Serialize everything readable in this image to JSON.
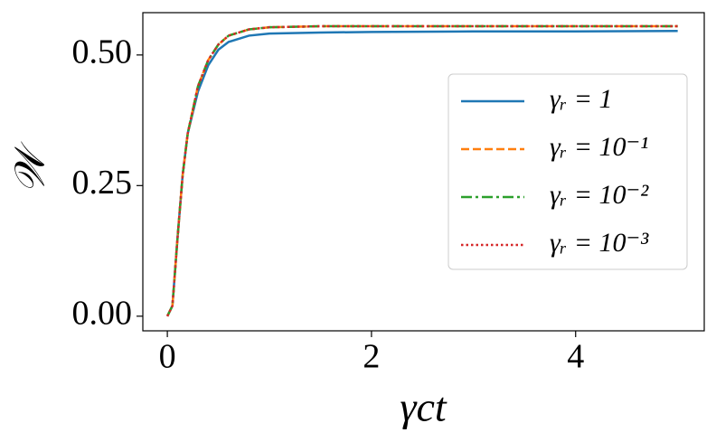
{
  "chart_data": {
    "type": "line",
    "xlabel": "γct",
    "ylabel": "𝒲",
    "x": [
      0,
      0.05,
      0.1,
      0.15,
      0.2,
      0.3,
      0.4,
      0.5,
      0.6,
      0.8,
      1,
      1.5,
      2,
      3,
      4,
      5
    ],
    "series": [
      {
        "name": "γᵣ = 1",
        "color": "#1f77b4",
        "dash": "solid",
        "values": [
          0,
          0.02,
          0.15,
          0.27,
          0.35,
          0.43,
          0.48,
          0.51,
          0.525,
          0.537,
          0.541,
          0.543,
          0.544,
          0.545,
          0.545,
          0.546
        ]
      },
      {
        "name": "γᵣ = 10⁻¹",
        "color": "#ff7f0e",
        "dash": "dashed",
        "values": [
          0,
          0.02,
          0.15,
          0.27,
          0.35,
          0.44,
          0.49,
          0.52,
          0.537,
          0.549,
          0.553,
          0.555,
          0.555,
          0.555,
          0.555,
          0.555
        ]
      },
      {
        "name": "γᵣ = 10⁻²",
        "color": "#2ca02c",
        "dash": "dashdot",
        "values": [
          0,
          0.02,
          0.15,
          0.27,
          0.35,
          0.44,
          0.49,
          0.52,
          0.537,
          0.549,
          0.553,
          0.555,
          0.555,
          0.555,
          0.555,
          0.555
        ]
      },
      {
        "name": "γᵣ = 10⁻³",
        "color": "#d62728",
        "dash": "dotted",
        "values": [
          0,
          0.02,
          0.15,
          0.27,
          0.35,
          0.44,
          0.49,
          0.52,
          0.537,
          0.549,
          0.553,
          0.555,
          0.555,
          0.555,
          0.555,
          0.555
        ]
      }
    ],
    "xlim": [
      -0.24,
      5.26
    ],
    "xticks": [
      0,
      2,
      4
    ],
    "ylim": [
      -0.028,
      0.581
    ],
    "yticks": [
      {
        "value": 0,
        "label": "0.00"
      },
      {
        "value": 0.25,
        "label": "0.25"
      },
      {
        "value": 0.5,
        "label": "0.50"
      }
    ],
    "legend": "right",
    "grid": false
  }
}
